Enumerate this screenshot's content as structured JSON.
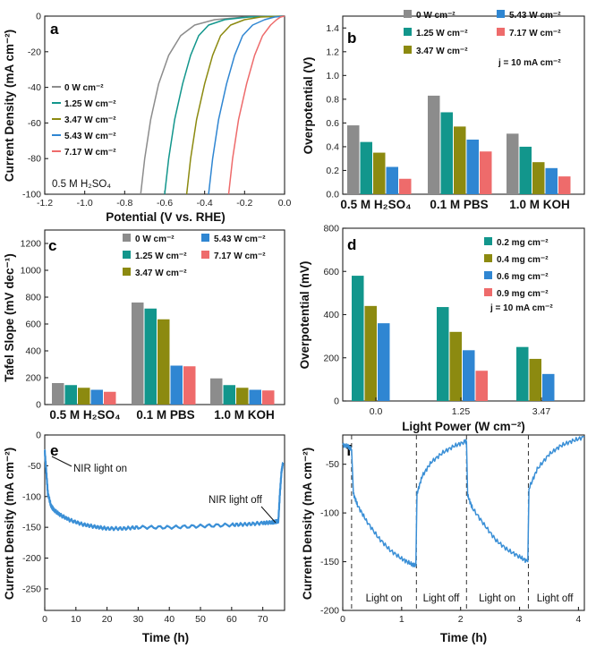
{
  "colors": {
    "gray": "#8c8c8c",
    "teal": "#12968c",
    "olive": "#8c8a10",
    "blue": "#2f86d2",
    "salmon": "#ee6b6b",
    "trace": "#3a8fd6"
  },
  "chart_data": [
    {
      "panel": "a",
      "type": "line",
      "xlabel": "Potential (V vs. RHE)",
      "ylabel": "Current Density (mA cm⁻²)",
      "xlim": [
        -1.2,
        0.0
      ],
      "ylim": [
        -100,
        0
      ],
      "xticks": [
        "-1.2",
        "-1.0",
        "-0.8",
        "-0.6",
        "-0.4",
        "-0.2",
        "0.0"
      ],
      "yticks": [
        "0",
        "-20",
        "-40",
        "-60",
        "-80",
        "-100"
      ],
      "legend_position": "center-left",
      "annotation": "0.5 M H₂SO₄",
      "series": [
        {
          "name": "0 W cm⁻²",
          "color_key": "gray",
          "x": [
            -0.72,
            -0.7,
            -0.67,
            -0.63,
            -0.58,
            -0.52,
            -0.45,
            -0.35,
            -0.2,
            0.0
          ],
          "y": [
            -100,
            -80,
            -58,
            -38,
            -22,
            -11,
            -5,
            -2,
            -0.5,
            0
          ]
        },
        {
          "name": "1.25 W cm⁻²",
          "color_key": "teal",
          "x": [
            -0.6,
            -0.58,
            -0.55,
            -0.51,
            -0.47,
            -0.43,
            -0.38,
            -0.3,
            -0.18,
            0.0
          ],
          "y": [
            -100,
            -80,
            -58,
            -38,
            -22,
            -11,
            -5,
            -2,
            -0.5,
            0
          ]
        },
        {
          "name": "3.47 W cm⁻²",
          "color_key": "olive",
          "x": [
            -0.49,
            -0.47,
            -0.44,
            -0.4,
            -0.36,
            -0.32,
            -0.27,
            -0.2,
            -0.12,
            0.0
          ],
          "y": [
            -100,
            -80,
            -58,
            -38,
            -22,
            -11,
            -5,
            -2,
            -0.5,
            0
          ]
        },
        {
          "name": "5.43 W cm⁻²",
          "color_key": "blue",
          "x": [
            -0.38,
            -0.36,
            -0.33,
            -0.29,
            -0.25,
            -0.21,
            -0.16,
            -0.1,
            -0.05,
            0.0
          ],
          "y": [
            -100,
            -80,
            -58,
            -38,
            -22,
            -11,
            -5,
            -2,
            -0.5,
            0
          ]
        },
        {
          "name": "7.17 W cm⁻²",
          "color_key": "salmon",
          "x": [
            -0.28,
            -0.26,
            -0.23,
            -0.19,
            -0.15,
            -0.11,
            -0.07,
            -0.04,
            -0.02,
            0.0
          ],
          "y": [
            -100,
            -80,
            -58,
            -38,
            -22,
            -11,
            -5,
            -2,
            -0.5,
            0
          ]
        }
      ]
    },
    {
      "panel": "b",
      "type": "bar",
      "ylabel": "Overpotential (V)",
      "ylim": [
        0,
        1.5
      ],
      "yticks": [
        "0.0",
        "0.2",
        "0.4",
        "0.6",
        "0.8",
        "1.0",
        "1.2",
        "1.4"
      ],
      "categories": [
        "0.5 M H₂SO₄",
        "0.1 M PBS",
        "1.0 M KOH"
      ],
      "legend_position": "top-right",
      "annotation": "j = 10 mA cm⁻²",
      "series": [
        {
          "name": "0 W cm⁻²",
          "color_key": "gray",
          "values": [
            0.58,
            0.83,
            0.51
          ]
        },
        {
          "name": "1.25 W cm⁻²",
          "color_key": "teal",
          "values": [
            0.44,
            0.69,
            0.4
          ]
        },
        {
          "name": "3.47 W cm⁻²",
          "color_key": "olive",
          "values": [
            0.35,
            0.57,
            0.27
          ]
        },
        {
          "name": "5.43 W cm⁻²",
          "color_key": "blue",
          "values": [
            0.23,
            0.46,
            0.22
          ]
        },
        {
          "name": "7.17 W cm⁻²",
          "color_key": "salmon",
          "values": [
            0.13,
            0.36,
            0.15
          ]
        }
      ]
    },
    {
      "panel": "c",
      "type": "bar",
      "ylabel": "Tafel Slope (mV dec⁻¹)",
      "ylim": [
        0,
        1300
      ],
      "yticks": [
        "0",
        "200",
        "400",
        "600",
        "800",
        "1000",
        "1200"
      ],
      "categories": [
        "0.5 M H₂SO₄",
        "0.1 M PBS",
        "1.0 M KOH"
      ],
      "legend_position": "top-right",
      "series": [
        {
          "name": "0 W cm⁻²",
          "color_key": "gray",
          "values": [
            160,
            760,
            195
          ]
        },
        {
          "name": "1.25 W cm⁻²",
          "color_key": "teal",
          "values": [
            145,
            715,
            145
          ]
        },
        {
          "name": "3.47 W cm⁻²",
          "color_key": "olive",
          "values": [
            125,
            635,
            125
          ]
        },
        {
          "name": "5.43 W cm⁻²",
          "color_key": "blue",
          "values": [
            110,
            290,
            110
          ]
        },
        {
          "name": "7.17 W cm⁻²",
          "color_key": "salmon",
          "values": [
            95,
            285,
            105
          ]
        }
      ]
    },
    {
      "panel": "d",
      "type": "bar",
      "xlabel": "Light Power (W cm⁻²)",
      "ylabel": "Overpotential (mV)",
      "ylim": [
        0,
        800
      ],
      "yticks": [
        "0",
        "200",
        "400",
        "600",
        "800"
      ],
      "categories": [
        "0.0",
        "1.25",
        "3.47"
      ],
      "legend_position": "top-right",
      "annotation": "j = 10 mA cm⁻²",
      "series": [
        {
          "name": "0.2 mg cm⁻²",
          "color_key": "teal",
          "values": [
            580,
            435,
            250
          ]
        },
        {
          "name": "0.4 mg cm⁻²",
          "color_key": "olive",
          "values": [
            440,
            320,
            195
          ]
        },
        {
          "name": "0.6 mg cm⁻²",
          "color_key": "blue",
          "values": [
            360,
            235,
            125
          ]
        },
        {
          "name": "0.9 mg cm⁻²",
          "color_key": "salmon",
          "values": [
            0,
            140,
            0
          ]
        }
      ]
    },
    {
      "panel": "e",
      "type": "line",
      "xlabel": "Time (h)",
      "ylabel": "Current Density (mA cm⁻²)",
      "xlim": [
        0,
        77
      ],
      "ylim": [
        -285,
        0
      ],
      "xticks": [
        "0",
        "10",
        "20",
        "30",
        "40",
        "50",
        "60",
        "70"
      ],
      "yticks": [
        "0",
        "-50",
        "-100",
        "-150",
        "-200",
        "-250"
      ],
      "annotations": [
        "NIR light on",
        "NIR light off"
      ],
      "series": [
        {
          "color_key": "trace",
          "x": [
            0,
            0.5,
            1,
            2,
            3,
            5,
            8,
            12,
            16,
            20,
            25,
            30,
            40,
            50,
            60,
            65,
            70,
            73,
            74,
            75,
            75.5,
            76,
            76.5
          ],
          "y": [
            -25,
            -60,
            -95,
            -115,
            -122,
            -130,
            -138,
            -145,
            -149,
            -152,
            -152,
            -150,
            -150,
            -148,
            -146,
            -145,
            -143,
            -142,
            -141,
            -140,
            -95,
            -60,
            -45
          ]
        }
      ]
    },
    {
      "panel": "f",
      "type": "line",
      "xlabel": "Time (h)",
      "ylabel": "Current Density (mA cm⁻²)",
      "xlim": [
        0,
        4.1
      ],
      "ylim": [
        -200,
        -20
      ],
      "xticks": [
        "0",
        "1",
        "2",
        "3",
        "4"
      ],
      "yticks": [
        "-50",
        "-100",
        "-150",
        "-200"
      ],
      "dividers_x": [
        0.15,
        1.25,
        2.1,
        3.15
      ],
      "region_labels": [
        "Light on",
        "Light off",
        "Light on",
        "Light off"
      ],
      "series": [
        {
          "color_key": "trace",
          "x": [
            0.0,
            0.1,
            0.15,
            0.18,
            0.25,
            0.4,
            0.6,
            0.8,
            1.0,
            1.15,
            1.24,
            1.26,
            1.35,
            1.5,
            1.7,
            1.9,
            2.08,
            2.1,
            2.12,
            2.2,
            2.4,
            2.6,
            2.8,
            3.0,
            3.14,
            3.16,
            3.3,
            3.5,
            3.7,
            3.9,
            4.1
          ],
          "y": [
            -30,
            -32,
            -35,
            -80,
            -92,
            -108,
            -125,
            -138,
            -147,
            -152,
            -154,
            -80,
            -62,
            -48,
            -38,
            -31,
            -27,
            -27,
            -82,
            -95,
            -112,
            -128,
            -138,
            -145,
            -150,
            -75,
            -55,
            -40,
            -31,
            -26,
            -22
          ]
        }
      ]
    }
  ]
}
